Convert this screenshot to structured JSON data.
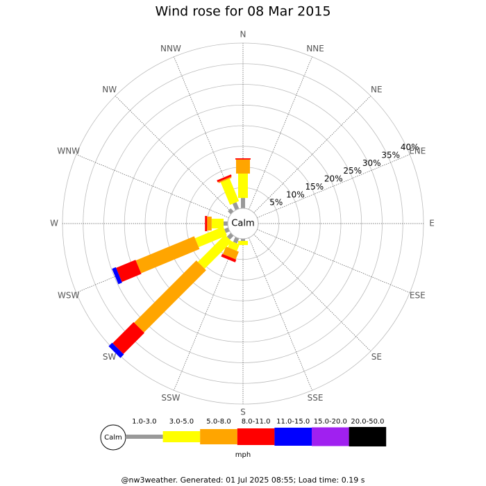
{
  "chart_data": {
    "type": "windrose",
    "title": "Wind rose for 08 Mar 2015",
    "categories": [
      "N",
      "NNE",
      "NE",
      "ENE",
      "E",
      "ESE",
      "SE",
      "SSE",
      "S",
      "SSW",
      "SW",
      "WSW",
      "W",
      "WNW",
      "NW",
      "NNW"
    ],
    "center_label": "Calm",
    "rlim": [
      0,
      40
    ],
    "rticks": [
      {
        "value": 5,
        "label": "5%"
      },
      {
        "value": 10,
        "label": "10%"
      },
      {
        "value": 15,
        "label": "15%"
      },
      {
        "value": 20,
        "label": "20%"
      },
      {
        "value": 25,
        "label": "25%"
      },
      {
        "value": 30,
        "label": "30%"
      },
      {
        "value": 35,
        "label": "35%"
      },
      {
        "value": 40,
        "label": "40%"
      }
    ],
    "series": [
      {
        "name": "1.0-3.0",
        "color": "#999999",
        "values": [
          2.5,
          0,
          0,
          0,
          0,
          0,
          0,
          0,
          0.5,
          1.3,
          1.3,
          1.0,
          1.0,
          0,
          1.0,
          1.7
        ]
      },
      {
        "name": "3.0-5.0",
        "color": "#ffff00",
        "values": [
          5.9,
          0,
          0,
          0,
          0,
          0,
          0,
          0,
          1.0,
          1.7,
          9.3,
          7.4,
          2.9,
          0,
          0,
          5.9
        ]
      },
      {
        "name": "5.0-8.0",
        "color": "#ffa500",
        "values": [
          3.4,
          0,
          0,
          0,
          0,
          0,
          0,
          0,
          0,
          2.0,
          21.3,
          15.3,
          1.1,
          0,
          0,
          0.3
        ]
      },
      {
        "name": "8.0-11.0",
        "color": "#ff0000",
        "values": [
          0.3,
          0,
          0,
          0,
          0,
          0,
          0,
          0,
          0,
          0.7,
          7.2,
          5.1,
          0.5,
          0,
          0,
          0.5
        ]
      },
      {
        "name": "11.0-15.0",
        "color": "#0000ff",
        "values": [
          0,
          0,
          0,
          0,
          0,
          0,
          0,
          0,
          0,
          0,
          1.2,
          1.0,
          0,
          0,
          0,
          0
        ]
      },
      {
        "name": "15.0-20.0",
        "color": "#a020f0",
        "values": [
          0,
          0,
          0,
          0,
          0,
          0,
          0,
          0,
          0,
          0,
          0,
          0,
          0,
          0,
          0,
          0
        ]
      },
      {
        "name": "20.0-50.0",
        "color": "#000000",
        "values": [
          0,
          0,
          0,
          0,
          0,
          0,
          0,
          0,
          0,
          0,
          0,
          0,
          0,
          0,
          0,
          0
        ]
      }
    ],
    "legend_unit": "mph",
    "footer": "@nw3weather. Generated: 01 Jul 2025 08:55; Load time: 0.19 s"
  }
}
